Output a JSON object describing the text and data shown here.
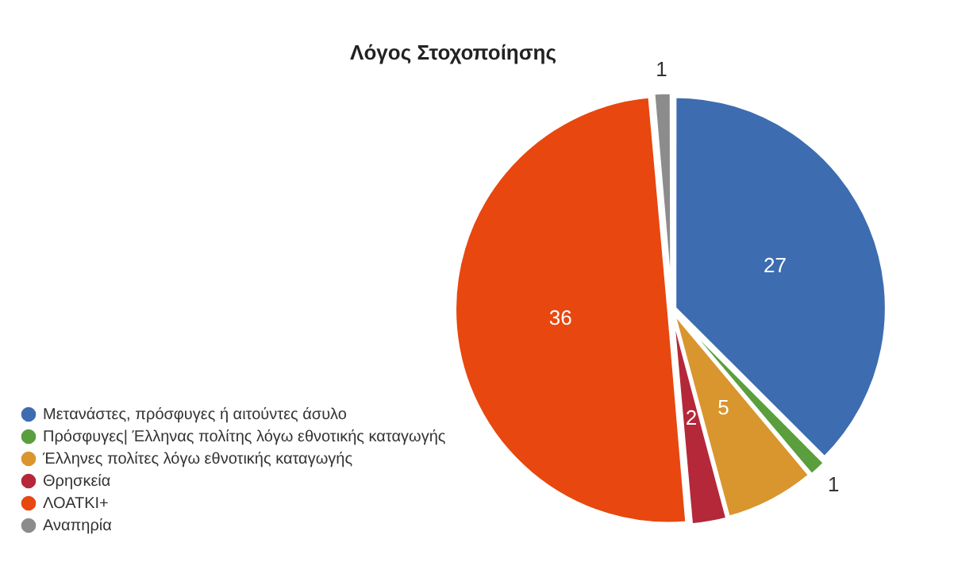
{
  "chart_data": {
    "type": "pie",
    "title": "Λόγος Στοχοποίησης",
    "categories": [
      "Μετανάστες, πρόσφυγες ή αιτούντες άσυλο",
      "Πρόσφυγες| Έλληνας πολίτης λόγω εθνοτικής καταγωγής",
      "Έλληνες πολίτες λόγω εθνοτικής καταγωγής",
      "Θρησκεία",
      "ΛΟΑΤΚΙ+",
      "Αναπηρία"
    ],
    "values": [
      27,
      1,
      5,
      2,
      36,
      1
    ],
    "colors": [
      "#3d6cb0",
      "#5a9e3e",
      "#d9952e",
      "#b4283a",
      "#e8470f",
      "#8c8c8c"
    ],
    "data_labels": true,
    "legend": "bottom left"
  }
}
